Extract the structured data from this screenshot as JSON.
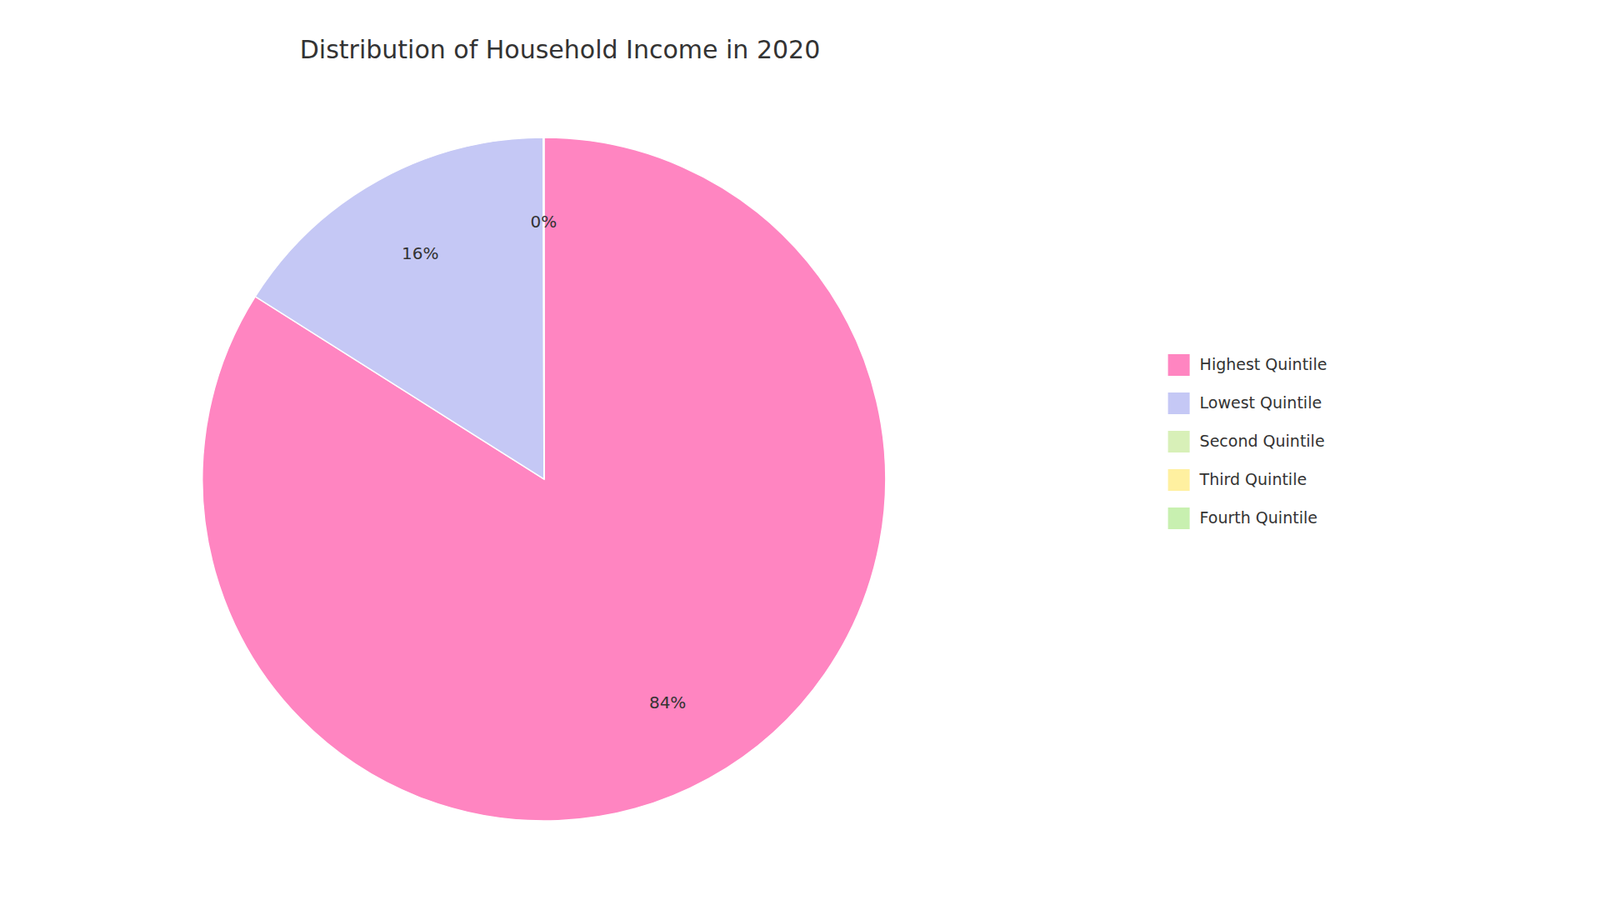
{
  "chart_data": {
    "type": "pie",
    "title": "Distribution of Household Income in 2020",
    "categories": [
      "Highest Quintile",
      "Lowest Quintile",
      "Second Quintile",
      "Third Quintile",
      "Fourth Quintile"
    ],
    "values": [
      84,
      16,
      0.01,
      0.01,
      0.01
    ],
    "value_labels": [
      "84%",
      "16%",
      "0%",
      null,
      null
    ],
    "colors": [
      "#FF85C1",
      "#C5C8F5",
      "#D8F0B8",
      "#FFF0A0",
      "#C8F0B0"
    ],
    "data_labels": true,
    "legend": "right"
  }
}
